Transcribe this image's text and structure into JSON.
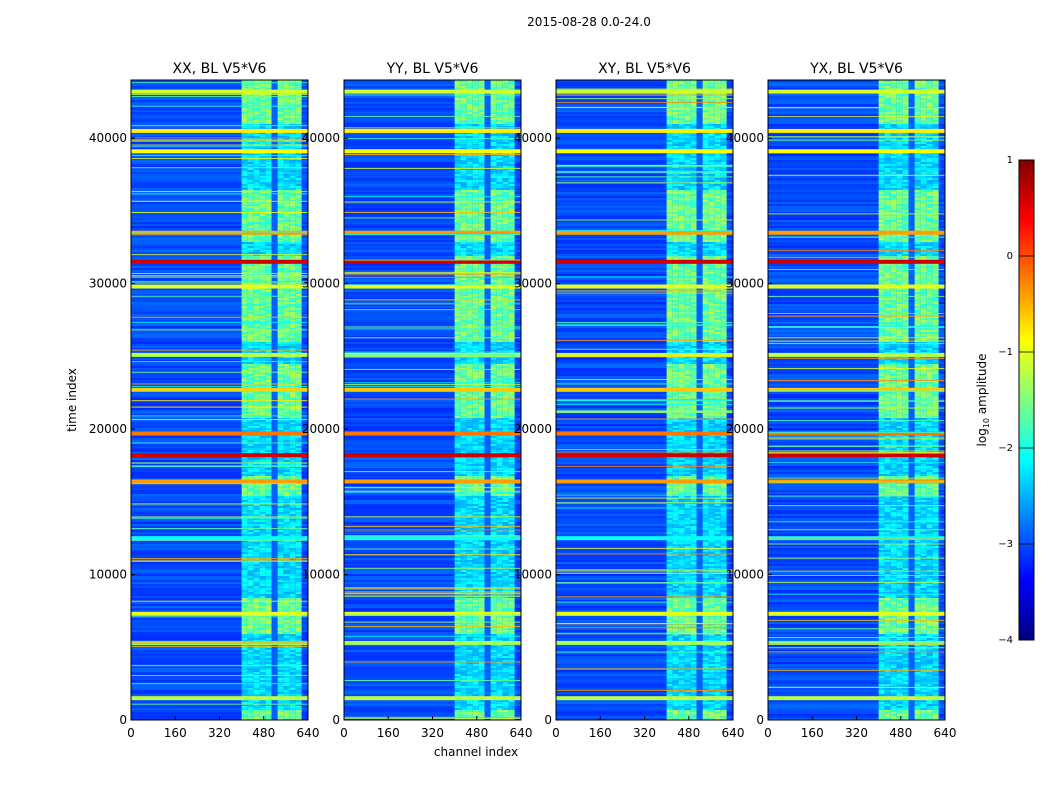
{
  "chart_data": {
    "type": "heatmap",
    "suptitle": "2015-08-28 0.0-24.0",
    "xlabel": "channel index",
    "ylabel": "time index",
    "xlim": [
      0,
      640
    ],
    "ylim": [
      0,
      44000
    ],
    "xticks": [
      0,
      160,
      320,
      480,
      640
    ],
    "yticks": [
      0,
      10000,
      20000,
      30000,
      40000
    ],
    "xtick_labels": [
      "0",
      "160",
      "320",
      "480",
      "640"
    ],
    "ytick_labels": [
      "0",
      "10000",
      "20000",
      "30000",
      "40000"
    ],
    "panels": [
      {
        "title": "XX, BL V5*V6",
        "polarization": "XX"
      },
      {
        "title": "YY, BL V5*V6",
        "polarization": "YY"
      },
      {
        "title": "XY, BL V5*V6",
        "polarization": "XY"
      },
      {
        "title": "YX, BL V5*V6",
        "polarization": "YX"
      }
    ],
    "colorbar": {
      "label_main": "log",
      "label_sub": "10",
      "label_rest": " amplitude",
      "range": [
        -4,
        1
      ],
      "ticks": [
        1,
        0,
        -1,
        -2,
        -3,
        -4
      ],
      "tick_labels": [
        "1",
        "0",
        "−1",
        "−2",
        "−3",
        "−4"
      ],
      "colormap": "jet"
    },
    "rfi_channel_band": [
      400,
      600
    ],
    "rfi_time_windows": [
      [
        0,
        700
      ],
      [
        6000,
        8500
      ],
      [
        15500,
        16800
      ],
      [
        20800,
        24500
      ],
      [
        26000,
        32000
      ],
      [
        33000,
        36500
      ],
      [
        41000,
        44000
      ]
    ],
    "horizontal_bands": [
      {
        "t": 1500,
        "v": -1.2
      },
      {
        "t": 5300,
        "v": -1.3
      },
      {
        "t": 7300,
        "v": -1.0
      },
      {
        "t": 12500,
        "v": -2.1
      },
      {
        "t": 16400,
        "v": -0.4
      },
      {
        "t": 18200,
        "v": 0.6
      },
      {
        "t": 19700,
        "v": -0.2
      },
      {
        "t": 22700,
        "v": -0.6
      },
      {
        "t": 25100,
        "v": -1.2
      },
      {
        "t": 29800,
        "v": -1.0
      },
      {
        "t": 31500,
        "v": 0.6
      },
      {
        "t": 33500,
        "v": -0.4
      },
      {
        "t": 39100,
        "v": -0.9
      },
      {
        "t": 40500,
        "v": -0.8
      },
      {
        "t": 43200,
        "v": -1.1
      }
    ]
  }
}
